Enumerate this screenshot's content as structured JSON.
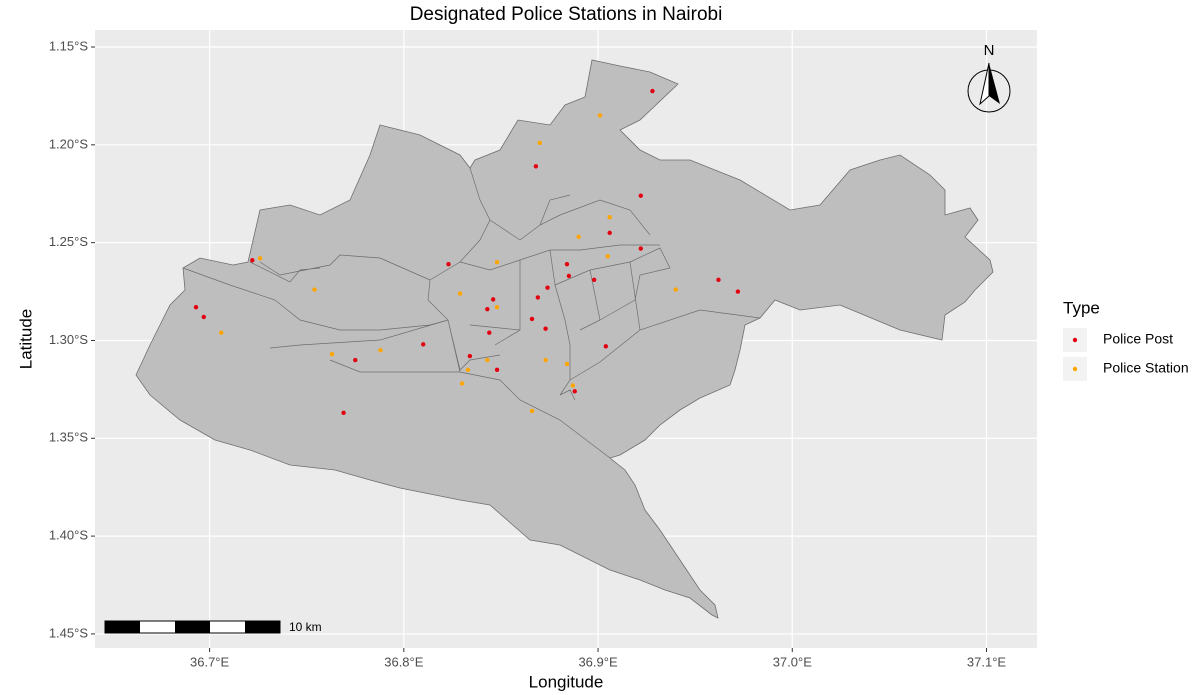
{
  "chart_data": {
    "type": "scatter",
    "title": "Designated Police Stations in Nairobi",
    "x_label": "Longitude",
    "y_label": "Latitude",
    "legend_title": "Type",
    "legend_position": "right",
    "grid": true,
    "north_label": "N",
    "scale_bar_label": "10 km",
    "xlim": [
      36.641,
      37.126
    ],
    "ylim": [
      -1.4572,
      -1.1413
    ],
    "xticks": [
      {
        "value": 36.7,
        "label": "36.7°E"
      },
      {
        "value": 36.8,
        "label": "36.8°E"
      },
      {
        "value": 36.9,
        "label": "36.9°E"
      },
      {
        "value": 37.0,
        "label": "37.0°E"
      },
      {
        "value": 37.1,
        "label": "37.1°E"
      }
    ],
    "yticks": [
      {
        "value": -1.15,
        "label": "1.15°S"
      },
      {
        "value": -1.2,
        "label": "1.20°S"
      },
      {
        "value": -1.25,
        "label": "1.25°S"
      },
      {
        "value": -1.3,
        "label": "1.30°S"
      },
      {
        "value": -1.35,
        "label": "1.35°S"
      },
      {
        "value": -1.4,
        "label": "1.40°S"
      },
      {
        "value": -1.45,
        "label": "1.45°S"
      }
    ],
    "series": [
      {
        "name": "Police Post",
        "color": "#e3000f",
        "x": [
          36.928,
          36.868,
          36.922,
          36.906,
          36.922,
          36.823,
          36.884,
          36.885,
          36.898,
          36.962,
          36.972,
          36.722,
          36.693,
          36.697,
          36.846,
          36.843,
          36.874,
          36.869,
          36.866,
          36.873,
          36.844,
          36.81,
          36.904,
          36.834,
          36.848,
          36.775,
          36.888,
          36.769
        ],
        "y": [
          -1.1725,
          -1.211,
          -1.226,
          -1.245,
          -1.253,
          -1.261,
          -1.261,
          -1.267,
          -1.269,
          -1.269,
          -1.275,
          -1.259,
          -1.283,
          -1.288,
          -1.279,
          -1.284,
          -1.273,
          -1.278,
          -1.289,
          -1.294,
          -1.296,
          -1.302,
          -1.303,
          -1.308,
          -1.315,
          -1.31,
          -1.326,
          -1.337
        ]
      },
      {
        "name": "Police Station",
        "color": "#ffa500",
        "x": [
          36.901,
          36.87,
          36.906,
          36.89,
          36.905,
          36.848,
          36.726,
          36.754,
          36.94,
          36.829,
          36.848,
          36.706,
          36.763,
          36.788,
          36.843,
          36.873,
          36.884,
          36.833,
          36.83,
          36.887,
          36.866
        ],
        "y": [
          -1.185,
          -1.199,
          -1.237,
          -1.247,
          -1.257,
          -1.26,
          -1.258,
          -1.274,
          -1.274,
          -1.276,
          -1.283,
          -1.296,
          -1.307,
          -1.305,
          -1.31,
          -1.31,
          -1.312,
          -1.315,
          -1.322,
          -1.323,
          -1.336
        ]
      }
    ]
  }
}
